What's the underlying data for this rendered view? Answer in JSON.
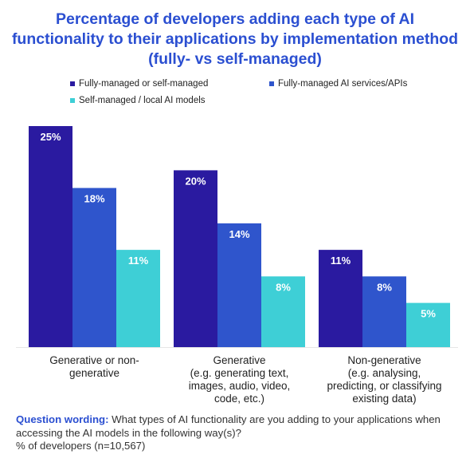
{
  "chart_data": {
    "type": "bar",
    "title": "Percentage of developers adding each type of AI functionality to their applications by implementation method (fully- vs self-managed)",
    "categories": [
      [
        "Generative or non-",
        "generative"
      ],
      [
        "Generative",
        "(e.g. generating text,",
        "images, audio, video,",
        "code, etc.)"
      ],
      [
        "Non-generative",
        "(e.g. analysing,",
        "predicting, or classifying",
        "existing data)"
      ]
    ],
    "series": [
      {
        "name": "Fully-managed or self-managed",
        "color": "#2a1aa0",
        "values": [
          25,
          20,
          11
        ]
      },
      {
        "name": "Fully-managed AI services/APIs",
        "color": "#2f55cc",
        "values": [
          18,
          14,
          8
        ]
      },
      {
        "name": "Self-managed / local AI models",
        "color": "#3ecfd6",
        "values": [
          11,
          8,
          5
        ]
      }
    ],
    "value_suffix": "%",
    "grid": false,
    "legend_position": "top",
    "ylim": [
      0,
      25
    ]
  },
  "footer": {
    "question_label": "Question wording:",
    "question_text": "What types of AI functionality are you adding to your applications when accessing the AI models in the following way(s)?",
    "note": "% of developers (n=10,567)"
  }
}
